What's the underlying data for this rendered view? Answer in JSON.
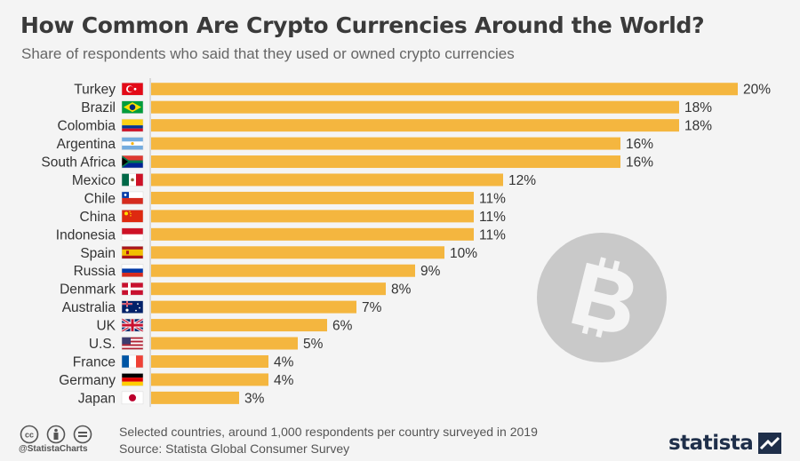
{
  "title": "How Common Are Crypto Currencies Around the World?",
  "subtitle": "Share of respondents who said that they used or owned crypto currencies",
  "chart_data": {
    "type": "bar",
    "orientation": "horizontal",
    "categories": [
      "Turkey",
      "Brazil",
      "Colombia",
      "Argentina",
      "South Africa",
      "Mexico",
      "Chile",
      "China",
      "Indonesia",
      "Spain",
      "Russia",
      "Denmark",
      "Australia",
      "UK",
      "U.S.",
      "France",
      "Germany",
      "Japan"
    ],
    "values": [
      20,
      18,
      18,
      16,
      16,
      12,
      11,
      11,
      11,
      10,
      9,
      8,
      7,
      6,
      5,
      4,
      4,
      3
    ],
    "value_labels": [
      "20%",
      "18%",
      "18%",
      "16%",
      "16%",
      "12%",
      "11%",
      "11%",
      "11%",
      "10%",
      "9%",
      "8%",
      "7%",
      "6%",
      "5%",
      "4%",
      "4%",
      "3%"
    ],
    "flag_icons": [
      "flag-turkey-icon",
      "flag-brazil-icon",
      "flag-colombia-icon",
      "flag-argentina-icon",
      "flag-south-africa-icon",
      "flag-mexico-icon",
      "flag-chile-icon",
      "flag-china-icon",
      "flag-indonesia-icon",
      "flag-spain-icon",
      "flag-russia-icon",
      "flag-denmark-icon",
      "flag-australia-icon",
      "flag-uk-icon",
      "flag-us-icon",
      "flag-france-icon",
      "flag-germany-icon",
      "flag-japan-icon"
    ],
    "xlim": [
      0,
      20
    ],
    "bar_color": "#f4b63f",
    "grid": false,
    "legend": "none"
  },
  "footer": {
    "note": "Selected countries, around 1,000 respondents per country surveyed in 2019",
    "source": "Source: Statista Global Consumer Survey",
    "handle": "@StatistaCharts",
    "license_icons": [
      "creative-commons-icon",
      "attribution-icon",
      "no-derivatives-icon"
    ]
  },
  "brand": {
    "name": "statista",
    "color": "#1f2f4a"
  },
  "watermark_icon": "bitcoin-icon"
}
